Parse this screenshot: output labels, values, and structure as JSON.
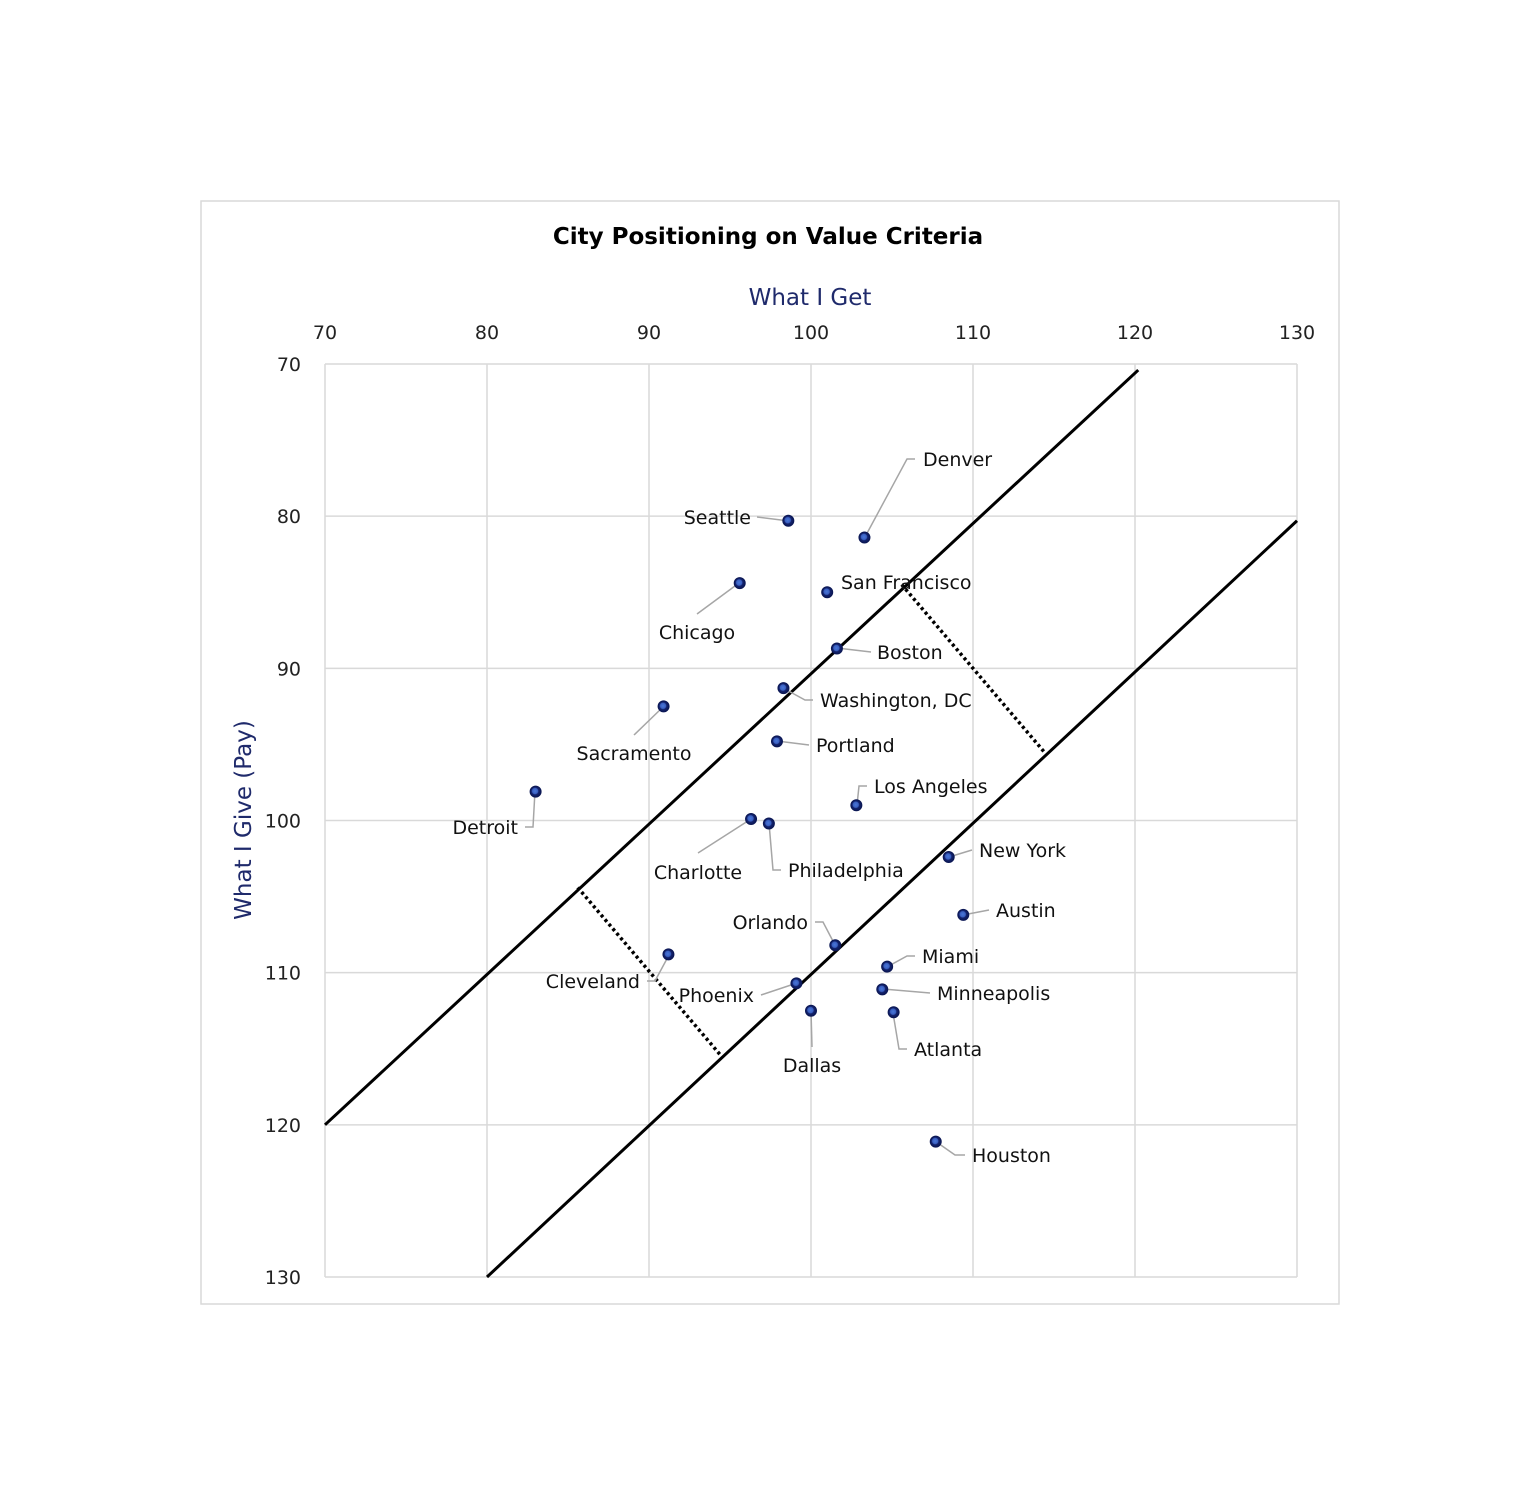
{
  "chart_data": {
    "type": "scatter",
    "title": "City Positioning on Value Criteria",
    "xlabel": "What I Get",
    "ylabel": "What I Give (Pay)",
    "xlim": [
      70,
      130
    ],
    "ylim": [
      70,
      130
    ],
    "y_axis_reversed": true,
    "x_axis_position": "top",
    "grid": true,
    "xticks": [
      "70",
      "80",
      "90",
      "100",
      "110",
      "120",
      "130"
    ],
    "yticks": [
      "70",
      "80",
      "90",
      "100",
      "110",
      "120",
      "130"
    ],
    "marker_color": "#13236e",
    "points": [
      {
        "name": "Seattle",
        "x": 98.6,
        "y": 80.3
      },
      {
        "name": "Denver",
        "x": 103.3,
        "y": 81.4
      },
      {
        "name": "Chicago",
        "x": 95.6,
        "y": 84.4
      },
      {
        "name": "San Francisco",
        "x": 101.0,
        "y": 85.0
      },
      {
        "name": "Boston",
        "x": 101.6,
        "y": 88.7
      },
      {
        "name": "Washington, DC",
        "x": 98.3,
        "y": 91.3
      },
      {
        "name": "Sacramento",
        "x": 90.9,
        "y": 92.5
      },
      {
        "name": "Portland",
        "x": 97.9,
        "y": 94.8
      },
      {
        "name": "Detroit",
        "x": 83.0,
        "y": 98.1
      },
      {
        "name": "Los Angeles",
        "x": 102.8,
        "y": 99.0
      },
      {
        "name": "Charlotte",
        "x": 96.3,
        "y": 99.9
      },
      {
        "name": "Philadelphia",
        "x": 97.4,
        "y": 100.2
      },
      {
        "name": "New York",
        "x": 108.5,
        "y": 102.4
      },
      {
        "name": "Austin",
        "x": 109.4,
        "y": 106.2
      },
      {
        "name": "Orlando",
        "x": 101.5,
        "y": 108.2
      },
      {
        "name": "Cleveland",
        "x": 91.2,
        "y": 108.8
      },
      {
        "name": "Miami",
        "x": 104.7,
        "y": 109.6
      },
      {
        "name": "Phoenix",
        "x": 99.1,
        "y": 110.7
      },
      {
        "name": "Minneapolis",
        "x": 104.4,
        "y": 111.1
      },
      {
        "name": "Dallas",
        "x": 100.0,
        "y": 112.5
      },
      {
        "name": "Atlanta",
        "x": 105.1,
        "y": 112.6
      },
      {
        "name": "Houston",
        "x": 107.7,
        "y": 121.1
      }
    ],
    "reference_lines": [
      {
        "style": "solid",
        "from": [
          70,
          120
        ],
        "to": [
          120.2,
          70.4
        ]
      },
      {
        "style": "solid",
        "from": [
          80,
          130
        ],
        "to": [
          130,
          80.3
        ]
      },
      {
        "style": "dotted",
        "from": [
          105.6,
          84.5
        ],
        "to": [
          114.4,
          95.5
        ]
      },
      {
        "style": "dotted",
        "from": [
          85.6,
          104.4
        ],
        "to": [
          94.4,
          115.4
        ]
      }
    ]
  }
}
